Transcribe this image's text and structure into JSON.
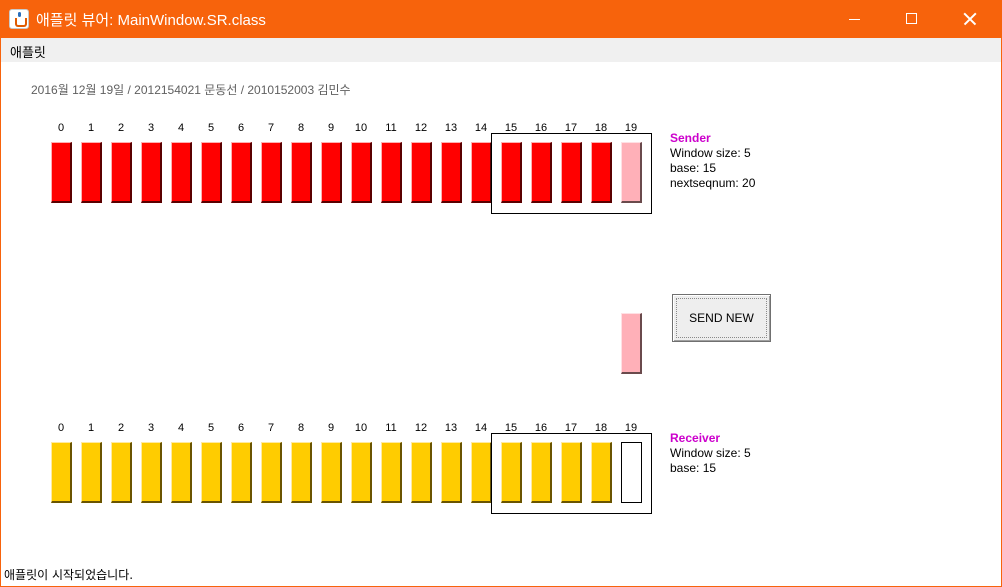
{
  "window": {
    "title": "애플릿 뷰어: MainWindow.SR.class",
    "menu": "애플릿"
  },
  "header": "2016월 12월 19일 / 2012154021 문동선 / 2010152003 김민수",
  "sender": {
    "numbers": [
      "0",
      "1",
      "2",
      "3",
      "4",
      "5",
      "6",
      "7",
      "8",
      "9",
      "10",
      "11",
      "12",
      "13",
      "14",
      "15",
      "16",
      "17",
      "18",
      "19"
    ],
    "packet_states": [
      "acked",
      "acked",
      "acked",
      "acked",
      "acked",
      "acked",
      "acked",
      "acked",
      "acked",
      "acked",
      "acked",
      "acked",
      "acked",
      "acked",
      "acked",
      "acked",
      "acked",
      "acked",
      "acked",
      "sent"
    ],
    "title": "Sender",
    "window_size": "Window size: 5",
    "base": "base: 15",
    "nextseqnum": "nextseqnum: 20"
  },
  "receiver": {
    "numbers": [
      "0",
      "1",
      "2",
      "3",
      "4",
      "5",
      "6",
      "7",
      "8",
      "9",
      "10",
      "11",
      "12",
      "13",
      "14",
      "15",
      "16",
      "17",
      "18",
      "19"
    ],
    "packet_states": [
      "recv",
      "recv",
      "recv",
      "recv",
      "recv",
      "recv",
      "recv",
      "recv",
      "recv",
      "recv",
      "recv",
      "recv",
      "recv",
      "recv",
      "recv",
      "recv",
      "recv",
      "recv",
      "recv",
      "empty"
    ],
    "title": "Receiver",
    "window_size": "Window size: 5",
    "base": "base: 15"
  },
  "send_button": "SEND NEW",
  "status_bar": "애플릿이 시작되었습니다.",
  "colors": {
    "titlebar": "#f7630c",
    "sender_acked": "#ff0000",
    "sender_in_flight": "#ffb0b8",
    "receiver_received": "#ffcc00",
    "info_title": "#cc00cc"
  }
}
